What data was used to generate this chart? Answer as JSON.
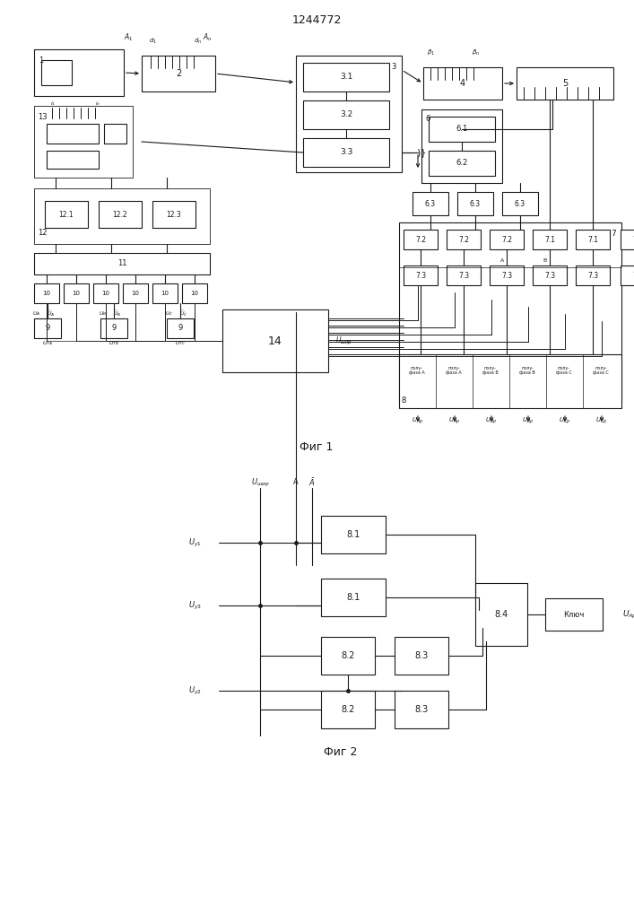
{
  "title": "1244772",
  "fig1_label": "Фиг 1",
  "fig2_label": "Фиг 2",
  "bg_color": "#ffffff",
  "line_color": "#1a1a1a",
  "box_color": "#ffffff",
  "lw": 0.8
}
